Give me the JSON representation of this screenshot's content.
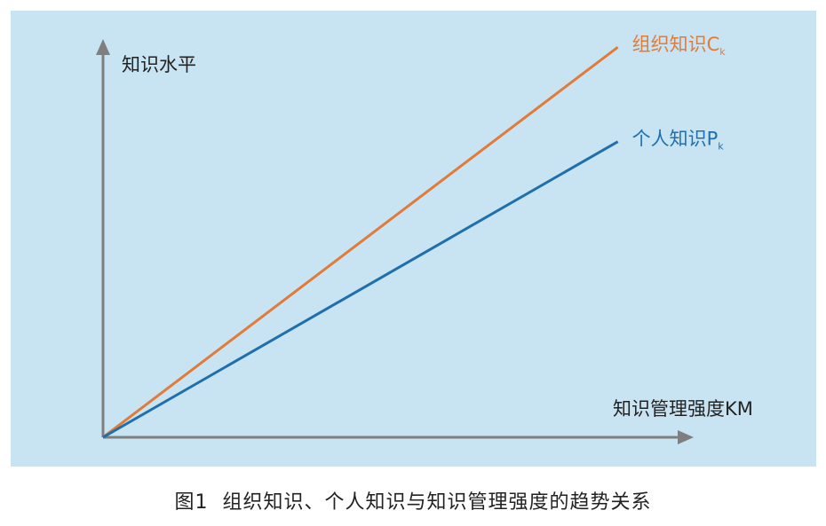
{
  "caption": {
    "number": "图1",
    "text": "组织知识、个人知识与知识管理强度的趋势关系"
  },
  "colors": {
    "panel_bg": "#c8e4f3",
    "axis": "#7f7f7f",
    "org_line": "#e07b39",
    "personal_line": "#1f6fad"
  },
  "chart_data": {
    "type": "line",
    "xlabel": "知识管理强度KM",
    "ylabel": "知识水平",
    "xlim": [
      0,
      10
    ],
    "ylim": [
      0,
      10
    ],
    "grid": false,
    "legend": "inline-end-labels",
    "series": [
      {
        "name": "组织知识C",
        "subscript": "k",
        "color": "#e07b39",
        "x": [
          0,
          7.3
        ],
        "y": [
          0,
          9.5
        ]
      },
      {
        "name": "个人知识P",
        "subscript": "k",
        "color": "#1f6fad",
        "x": [
          0,
          7.3
        ],
        "y": [
          0,
          7.2
        ]
      }
    ]
  }
}
